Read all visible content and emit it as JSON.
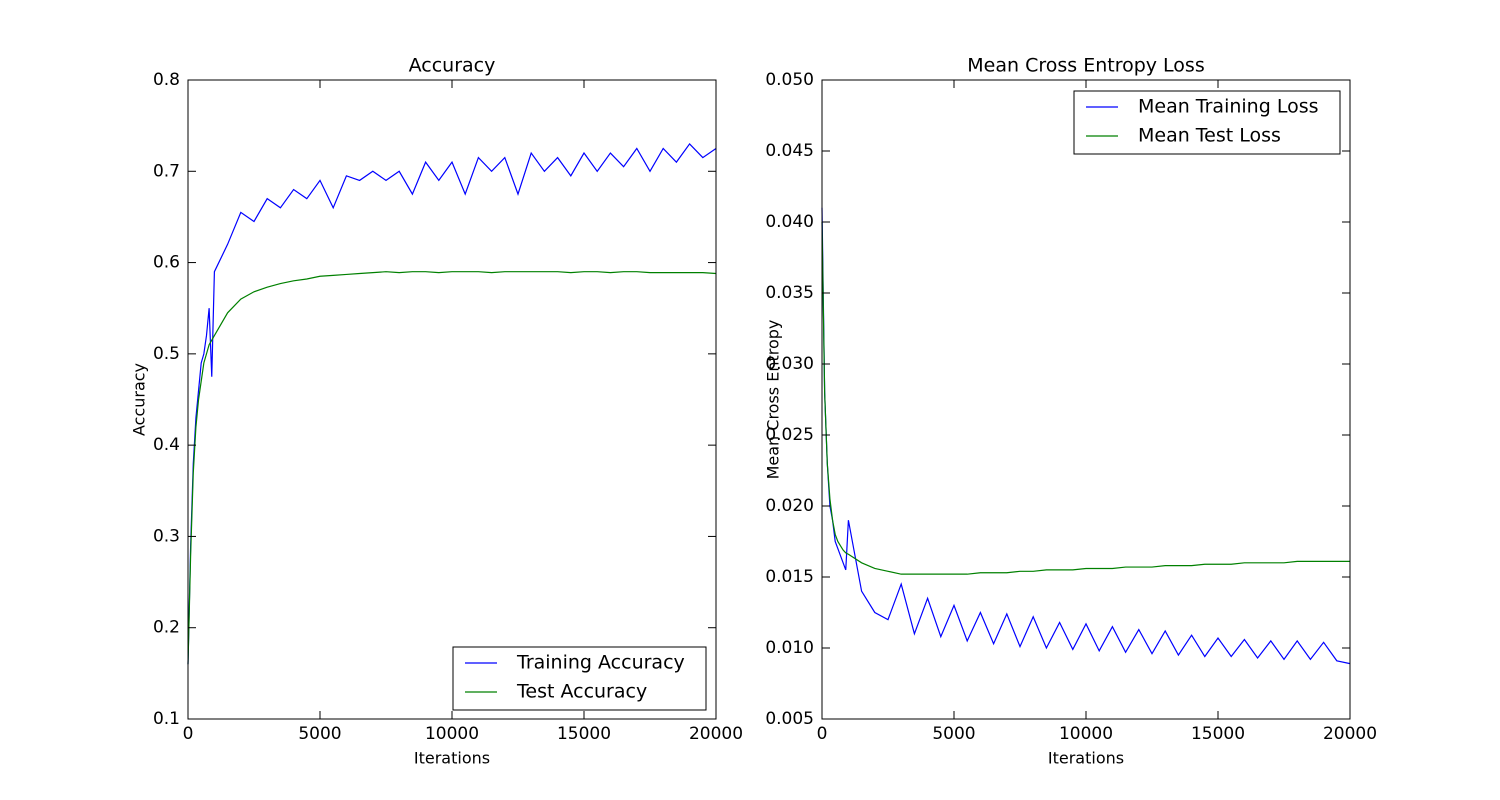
{
  "chart_data": [
    {
      "type": "line",
      "title": "Accuracy",
      "xlabel": "Iterations",
      "ylabel": "Accuracy",
      "x": [
        0,
        100,
        200,
        300,
        400,
        500,
        600,
        700,
        800,
        900,
        1000,
        1500,
        2000,
        2500,
        3000,
        3500,
        4000,
        4500,
        5000,
        5500,
        6000,
        6500,
        7000,
        7500,
        8000,
        8500,
        9000,
        9500,
        10000,
        10500,
        11000,
        11500,
        12000,
        12500,
        13000,
        13500,
        14000,
        14500,
        15000,
        15500,
        16000,
        16500,
        17000,
        17500,
        18000,
        18500,
        19000,
        19500,
        20000
      ],
      "series": [
        {
          "name": "Training Accuracy",
          "color": "#0000ff",
          "values": [
            0.16,
            0.29,
            0.38,
            0.43,
            0.46,
            0.49,
            0.5,
            0.52,
            0.55,
            0.475,
            0.59,
            0.62,
            0.655,
            0.645,
            0.67,
            0.66,
            0.68,
            0.67,
            0.69,
            0.66,
            0.695,
            0.69,
            0.7,
            0.69,
            0.7,
            0.675,
            0.71,
            0.69,
            0.71,
            0.675,
            0.715,
            0.7,
            0.715,
            0.675,
            0.72,
            0.7,
            0.715,
            0.695,
            0.72,
            0.7,
            0.72,
            0.705,
            0.725,
            0.7,
            0.725,
            0.71,
            0.73,
            0.715,
            0.725
          ]
        },
        {
          "name": "Test Accuracy",
          "color": "#008000",
          "values": [
            0.16,
            0.28,
            0.37,
            0.42,
            0.45,
            0.47,
            0.49,
            0.5,
            0.51,
            0.515,
            0.52,
            0.545,
            0.56,
            0.568,
            0.573,
            0.577,
            0.58,
            0.582,
            0.585,
            0.586,
            0.587,
            0.588,
            0.589,
            0.59,
            0.589,
            0.59,
            0.59,
            0.589,
            0.59,
            0.59,
            0.59,
            0.589,
            0.59,
            0.59,
            0.59,
            0.59,
            0.59,
            0.589,
            0.59,
            0.59,
            0.589,
            0.59,
            0.59,
            0.589,
            0.589,
            0.589,
            0.589,
            0.589,
            0.588
          ]
        }
      ],
      "xlim": [
        0,
        20000
      ],
      "xticks": [
        0,
        5000,
        10000,
        15000,
        20000
      ],
      "ylim": [
        0.1,
        0.8
      ],
      "yticks": [
        0.1,
        0.2,
        0.3,
        0.4,
        0.5,
        0.6,
        0.7,
        0.8
      ],
      "legend": "lower right"
    },
    {
      "type": "line",
      "title": "Mean Cross Entropy Loss",
      "xlabel": "Iterations",
      "ylabel": "Mean Cross Entropy",
      "x": [
        0,
        100,
        200,
        300,
        400,
        500,
        600,
        700,
        800,
        900,
        1000,
        1500,
        2000,
        2500,
        3000,
        3500,
        4000,
        4500,
        5000,
        5500,
        6000,
        6500,
        7000,
        7500,
        8000,
        8500,
        9000,
        9500,
        10000,
        10500,
        11000,
        11500,
        12000,
        12500,
        13000,
        13500,
        14000,
        14500,
        15000,
        15500,
        16000,
        16500,
        17000,
        17500,
        18000,
        18500,
        19000,
        19500,
        20000
      ],
      "series": [
        {
          "name": "Mean Training Loss",
          "color": "#0000ff",
          "values": [
            0.041,
            0.028,
            0.023,
            0.02,
            0.019,
            0.0175,
            0.017,
            0.0165,
            0.016,
            0.0155,
            0.019,
            0.014,
            0.0125,
            0.012,
            0.0145,
            0.011,
            0.0135,
            0.0108,
            0.013,
            0.0105,
            0.0125,
            0.0103,
            0.0124,
            0.0101,
            0.0122,
            0.01,
            0.0118,
            0.0099,
            0.0117,
            0.0098,
            0.0115,
            0.0097,
            0.0113,
            0.0096,
            0.0112,
            0.0095,
            0.0109,
            0.0094,
            0.0107,
            0.0094,
            0.0106,
            0.0093,
            0.0105,
            0.0092,
            0.0105,
            0.0092,
            0.0104,
            0.0091,
            0.0089
          ]
        },
        {
          "name": "Mean Test Loss",
          "color": "#008000",
          "values": [
            0.04,
            0.028,
            0.023,
            0.0205,
            0.019,
            0.018,
            0.0175,
            0.0172,
            0.0169,
            0.0167,
            0.0166,
            0.016,
            0.0156,
            0.0154,
            0.0152,
            0.0152,
            0.0152,
            0.0152,
            0.0152,
            0.0152,
            0.0153,
            0.0153,
            0.0153,
            0.0154,
            0.0154,
            0.0155,
            0.0155,
            0.0155,
            0.0156,
            0.0156,
            0.0156,
            0.0157,
            0.0157,
            0.0157,
            0.0158,
            0.0158,
            0.0158,
            0.0159,
            0.0159,
            0.0159,
            0.016,
            0.016,
            0.016,
            0.016,
            0.0161,
            0.0161,
            0.0161,
            0.0161,
            0.0161
          ]
        }
      ],
      "xlim": [
        0,
        20000
      ],
      "xticks": [
        0,
        5000,
        10000,
        15000,
        20000
      ],
      "ylim": [
        0.005,
        0.05
      ],
      "yticks": [
        0.005,
        {
          "value": 0.01,
          "label": "0.010"
        },
        0.015,
        {
          "value": 0.02,
          "label": "0.020"
        },
        0.025,
        {
          "value": 0.03,
          "label": "0.030"
        },
        0.035,
        {
          "value": 0.04,
          "label": "0.040"
        },
        0.045,
        {
          "value": 0.05,
          "label": "0.050"
        }
      ],
      "legend": "upper right"
    }
  ]
}
